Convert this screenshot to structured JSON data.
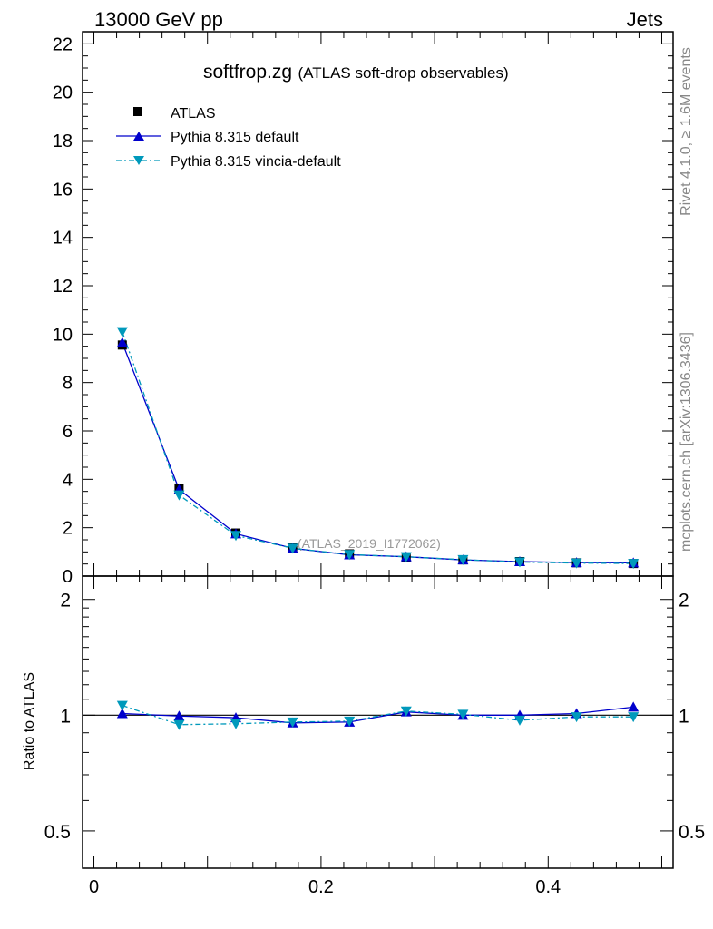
{
  "header": {
    "left": "13000 GeV pp",
    "right": "Jets"
  },
  "side_text": {
    "rivet": "Rivet 4.1.0, ≥ 1.6M events",
    "mcplots": "mcplots.cern.ch [arXiv:1306.3436]"
  },
  "plot_title": {
    "main": "softfrop.zg",
    "sub": "(ATLAS soft-drop observables)"
  },
  "analysis_id": "(ATLAS_2019_I1772062)",
  "legend": [
    {
      "label": "ATLAS",
      "marker": "square",
      "color": "#000000"
    },
    {
      "label": "Pythia 8.315 default",
      "marker": "triangle-up",
      "color": "#0000cc"
    },
    {
      "label": "Pythia 8.315 vincia-default",
      "marker": "triangle-down",
      "color": "#0099bb"
    }
  ],
  "chart_data": [
    {
      "type": "line",
      "panel": "main",
      "x": [
        0.025,
        0.075,
        0.125,
        0.175,
        0.225,
        0.275,
        0.325,
        0.375,
        0.425,
        0.475
      ],
      "series": [
        {
          "name": "ATLAS",
          "values": [
            9.55,
            3.6,
            1.78,
            1.2,
            0.92,
            0.78,
            0.67,
            0.6,
            0.55,
            0.52
          ],
          "color": "#000000"
        },
        {
          "name": "Pythia 8.315 default",
          "values": [
            9.65,
            3.58,
            1.75,
            1.15,
            0.88,
            0.8,
            0.67,
            0.6,
            0.56,
            0.55
          ],
          "color": "#0000cc"
        },
        {
          "name": "Pythia 8.315 vincia-default",
          "values": [
            10.1,
            3.35,
            1.68,
            1.15,
            0.89,
            0.8,
            0.68,
            0.58,
            0.54,
            0.52
          ],
          "color": "#0099bb"
        }
      ],
      "xlim": [
        -0.01,
        0.51
      ],
      "ylim": [
        0,
        22.5
      ],
      "yticks": [
        0,
        2,
        4,
        6,
        8,
        10,
        12,
        14,
        16,
        18,
        20,
        22
      ],
      "ytick_labels": [
        "0",
        "2",
        "4",
        "6",
        "8",
        "10",
        "12",
        "14",
        "16",
        "18",
        "20",
        "22"
      ]
    },
    {
      "type": "line",
      "panel": "ratio",
      "ylabel": "Ratio to ATLAS",
      "x": [
        0.025,
        0.075,
        0.125,
        0.175,
        0.225,
        0.275,
        0.325,
        0.375,
        0.425,
        0.475
      ],
      "series": [
        {
          "name": "Pythia 8.315 default",
          "values": [
            1.01,
            0.995,
            0.985,
            0.955,
            0.96,
            1.02,
            1.0,
            1.0,
            1.01,
            1.05
          ],
          "color": "#0000cc"
        },
        {
          "name": "Pythia 8.315 vincia-default",
          "values": [
            1.06,
            0.945,
            0.95,
            0.96,
            0.965,
            1.025,
            1.005,
            0.97,
            0.99,
            0.99
          ],
          "color": "#0099bb"
        }
      ],
      "xlim": [
        -0.01,
        0.51
      ],
      "ylim": [
        0.4,
        2.3
      ],
      "yticks": [
        0.5,
        1,
        2
      ],
      "ytick_labels": [
        "0.5",
        "1",
        "2"
      ],
      "xticks": [
        0,
        0.2,
        0.4
      ],
      "xtick_labels": [
        "0",
        "0.2",
        "0.4"
      ]
    }
  ]
}
